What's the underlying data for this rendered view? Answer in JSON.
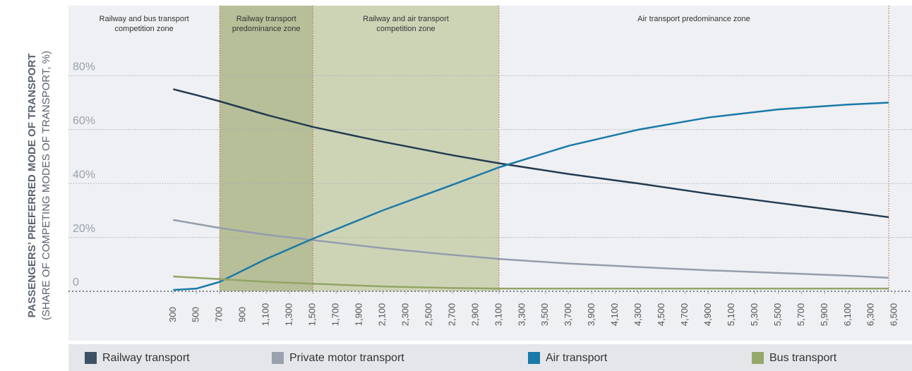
{
  "chart_data": {
    "type": "line",
    "y_axis_title": "PASSENGERS’ PREFERRED MODE OF TRANSPORT",
    "y_axis_subtitle": "(SHARE OF COMPETING MODES OF TRANSPORT, %)",
    "xlim": [
      -600,
      6650
    ],
    "ylim": [
      0,
      106
    ],
    "xticks": [
      300,
      500,
      700,
      900,
      {
        "value": 1100,
        "label": "1,100"
      },
      {
        "value": 1300,
        "label": "1,300"
      },
      {
        "value": 1500,
        "label": "1,500"
      },
      {
        "value": 1700,
        "label": "1,700"
      },
      {
        "value": 1900,
        "label": "1,900"
      },
      {
        "value": 2100,
        "label": "2,100"
      },
      {
        "value": 2300,
        "label": "2,300"
      },
      {
        "value": 2500,
        "label": "2,500"
      },
      {
        "value": 2700,
        "label": "2,700"
      },
      {
        "value": 2900,
        "label": "2,900"
      },
      {
        "value": 3100,
        "label": "3,100"
      },
      {
        "value": 3300,
        "label": "3,300"
      },
      {
        "value": 3500,
        "label": "3,500"
      },
      {
        "value": 3700,
        "label": "3,700"
      },
      {
        "value": 3900,
        "label": "3,900"
      },
      {
        "value": 4100,
        "label": "4,100"
      },
      {
        "value": 4300,
        "label": "4,300"
      },
      {
        "value": 4500,
        "label": "4,500"
      },
      {
        "value": 4700,
        "label": "4,700"
      },
      {
        "value": 4900,
        "label": "4,900"
      },
      {
        "value": 5100,
        "label": "5,100"
      },
      {
        "value": 5300,
        "label": "5,300"
      },
      {
        "value": 5500,
        "label": "5,500"
      },
      {
        "value": 5700,
        "label": "5,700"
      },
      {
        "value": 5900,
        "label": "5,900"
      },
      {
        "value": 6100,
        "label": "6,100"
      },
      {
        "value": 6300,
        "label": "6,300"
      },
      {
        "value": 6500,
        "label": "6,500"
      }
    ],
    "yticks": [
      0,
      {
        "value": 20,
        "label": "20%"
      },
      {
        "value": 40,
        "label": "40%"
      },
      {
        "value": 60,
        "label": "60%"
      },
      {
        "value": 80,
        "label": "80%"
      }
    ],
    "grid": true,
    "zones": [
      {
        "label_lines": [
          "Railway and bus transport",
          "competition zone"
        ],
        "from": -600,
        "to": 700,
        "color": "#eef0f3"
      },
      {
        "label_lines": [
          "Railway transport",
          "predominance zone"
        ],
        "from": 700,
        "to": 1500,
        "color": "#b6bf98"
      },
      {
        "label_lines": [
          "Railway and air transport",
          "competition zone"
        ],
        "from": 1500,
        "to": 3100,
        "color": "#cdd4b6"
      },
      {
        "label_lines": [
          "Air transport predominance zone"
        ],
        "from": 3100,
        "to": 6450,
        "color": "#eef0f3"
      }
    ],
    "x": [
      300,
      500,
      700,
      1100,
      1500,
      2100,
      2700,
      3100,
      3700,
      4300,
      4900,
      5500,
      6100,
      6450
    ],
    "series": [
      {
        "name": "Railway transport",
        "color": "#243b50",
        "legend_color": "#3d5166",
        "values": [
          75,
          72.8,
          70.5,
          65.5,
          61,
          55.5,
          50.5,
          47.5,
          43.5,
          40,
          36.2,
          32.8,
          29.5,
          27.5
        ]
      },
      {
        "name": "Private motor transport",
        "color": "#959dab",
        "legend_color": "#9aa2b0",
        "values": [
          26.5,
          25,
          23.5,
          21,
          19,
          16,
          13.5,
          12,
          10.3,
          9,
          7.8,
          6.8,
          5.8,
          5
        ]
      },
      {
        "name": "Air transport",
        "color": "#1a79a8",
        "legend_color": "#1a79a8",
        "values": [
          0.5,
          1,
          3.5,
          12,
          19.5,
          30,
          39.5,
          46,
          54,
          60,
          64.5,
          67.5,
          69.3,
          70
        ]
      },
      {
        "name": "Bus transport",
        "color": "#92a566",
        "legend_color": "#95a86a",
        "values": [
          5.5,
          5,
          4.5,
          3.5,
          2.8,
          1.8,
          1.2,
          1,
          1,
          1,
          1,
          1,
          1,
          1
        ]
      }
    ]
  }
}
